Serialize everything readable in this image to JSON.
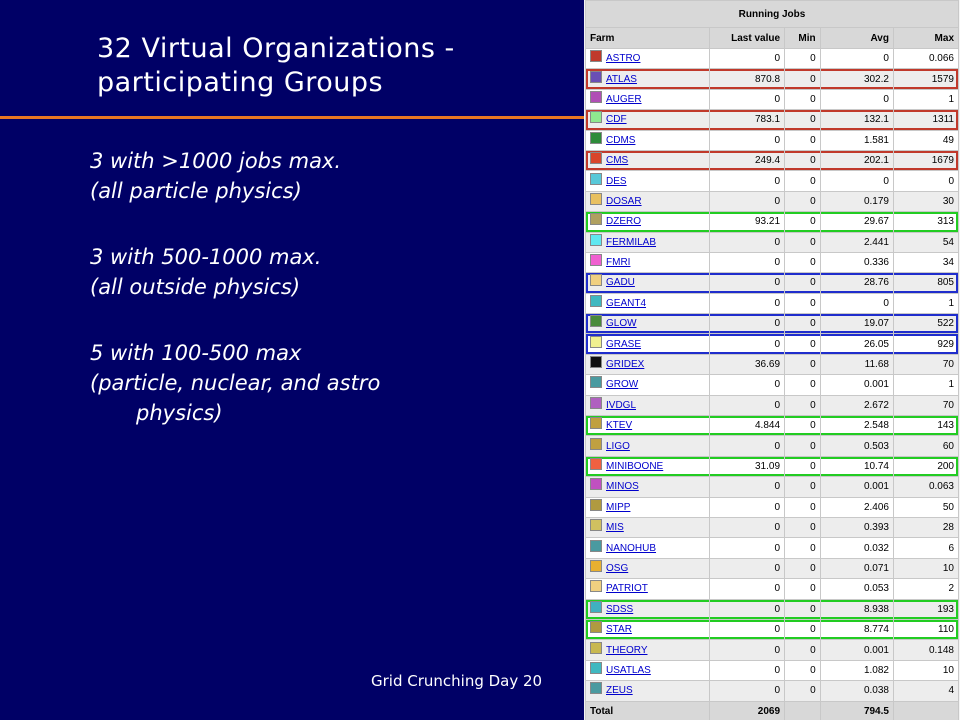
{
  "slide": {
    "title": "32 Virtual Organizations - participating Groups",
    "bullets": [
      "3 with >1000 jobs max.",
      "(all particle physics)",
      "3 with 500-1000 max.",
      "(all outside physics)",
      "5 with 100-500 max",
      "(particle, nuclear, and astro",
      "physics)"
    ],
    "footer": "Grid Crunching Day 20"
  },
  "table": {
    "caption": "Running Jobs",
    "columns": [
      "Farm",
      "Last value",
      "Min",
      "Avg",
      "Max"
    ],
    "rows": [
      {
        "name": "ASTRO",
        "color": "#c0392b",
        "last": "0",
        "min": "0",
        "avg": "0",
        "max": "0.066",
        "highlight": ""
      },
      {
        "name": "ATLAS",
        "color": "#6a4fb5",
        "last": "870.8",
        "min": "0",
        "avg": "302.2",
        "max": "1579",
        "highlight": "red"
      },
      {
        "name": "AUGER",
        "color": "#b04fb5",
        "last": "0",
        "min": "0",
        "avg": "0",
        "max": "1",
        "highlight": ""
      },
      {
        "name": "CDF",
        "color": "#8fe88f",
        "last": "783.1",
        "min": "0",
        "avg": "132.1",
        "max": "1311",
        "highlight": "red"
      },
      {
        "name": "CDMS",
        "color": "#2e8b3a",
        "last": "0",
        "min": "0",
        "avg": "1.581",
        "max": "49",
        "highlight": ""
      },
      {
        "name": "CMS",
        "color": "#d9452b",
        "last": "249.4",
        "min": "0",
        "avg": "202.1",
        "max": "1679",
        "highlight": "red"
      },
      {
        "name": "DES",
        "color": "#58c8d8",
        "last": "0",
        "min": "0",
        "avg": "0",
        "max": "0",
        "highlight": ""
      },
      {
        "name": "DOSAR",
        "color": "#e8c060",
        "last": "0",
        "min": "0",
        "avg": "0.179",
        "max": "30",
        "highlight": ""
      },
      {
        "name": "DZERO",
        "color": "#b0a060",
        "last": "93.21",
        "min": "0",
        "avg": "29.67",
        "max": "313",
        "highlight": "green"
      },
      {
        "name": "FERMILAB",
        "color": "#60e8f0",
        "last": "0",
        "min": "0",
        "avg": "2.441",
        "max": "54",
        "highlight": ""
      },
      {
        "name": "FMRI",
        "color": "#f060d0",
        "last": "0",
        "min": "0",
        "avg": "0.336",
        "max": "34",
        "highlight": ""
      },
      {
        "name": "GADU",
        "color": "#f0d080",
        "last": "0",
        "min": "0",
        "avg": "28.76",
        "max": "805",
        "highlight": "blue"
      },
      {
        "name": "GEANT4",
        "color": "#40b8c0",
        "last": "0",
        "min": "0",
        "avg": "0",
        "max": "1",
        "highlight": ""
      },
      {
        "name": "GLOW",
        "color": "#4a8a3a",
        "last": "0",
        "min": "0",
        "avg": "19.07",
        "max": "522",
        "highlight": "blue"
      },
      {
        "name": "GRASE",
        "color": "#f0f090",
        "last": "0",
        "min": "0",
        "avg": "26.05",
        "max": "929",
        "highlight": "blue"
      },
      {
        "name": "GRIDEX",
        "color": "#111111",
        "last": "36.69",
        "min": "0",
        "avg": "11.68",
        "max": "70",
        "highlight": ""
      },
      {
        "name": "GROW",
        "color": "#4a9aa0",
        "last": "0",
        "min": "0",
        "avg": "0.001",
        "max": "1",
        "highlight": ""
      },
      {
        "name": "IVDGL",
        "color": "#b060c0",
        "last": "0",
        "min": "0",
        "avg": "2.672",
        "max": "70",
        "highlight": ""
      },
      {
        "name": "KTEV",
        "color": "#c0a040",
        "last": "4.844",
        "min": "0",
        "avg": "2.548",
        "max": "143",
        "highlight": "green"
      },
      {
        "name": "LIGO",
        "color": "#c0a040",
        "last": "0",
        "min": "0",
        "avg": "0.503",
        "max": "60",
        "highlight": ""
      },
      {
        "name": "MINIBOONE",
        "color": "#f06040",
        "last": "31.09",
        "min": "0",
        "avg": "10.74",
        "max": "200",
        "highlight": "green"
      },
      {
        "name": "MINOS",
        "color": "#c050c0",
        "last": "0",
        "min": "0",
        "avg": "0.001",
        "max": "0.063",
        "highlight": ""
      },
      {
        "name": "MIPP",
        "color": "#b09a40",
        "last": "0",
        "min": "0",
        "avg": "2.406",
        "max": "50",
        "highlight": ""
      },
      {
        "name": "MIS",
        "color": "#d0c060",
        "last": "0",
        "min": "0",
        "avg": "0.393",
        "max": "28",
        "highlight": ""
      },
      {
        "name": "NANOHUB",
        "color": "#4a9aa0",
        "last": "0",
        "min": "0",
        "avg": "0.032",
        "max": "6",
        "highlight": ""
      },
      {
        "name": "OSG",
        "color": "#e8b030",
        "last": "0",
        "min": "0",
        "avg": "0.071",
        "max": "10",
        "highlight": ""
      },
      {
        "name": "PATRIOT",
        "color": "#f0d080",
        "last": "0",
        "min": "0",
        "avg": "0.053",
        "max": "2",
        "highlight": ""
      },
      {
        "name": "SDSS",
        "color": "#40b0c0",
        "last": "0",
        "min": "0",
        "avg": "8.938",
        "max": "193",
        "highlight": "green"
      },
      {
        "name": "STAR",
        "color": "#b09a40",
        "last": "0",
        "min": "0",
        "avg": "8.774",
        "max": "110",
        "highlight": "green"
      },
      {
        "name": "THEORY",
        "color": "#c8b850",
        "last": "0",
        "min": "0",
        "avg": "0.001",
        "max": "0.148",
        "highlight": ""
      },
      {
        "name": "USATLAS",
        "color": "#40b8c0",
        "last": "0",
        "min": "0",
        "avg": "1.082",
        "max": "10",
        "highlight": ""
      },
      {
        "name": "ZEUS",
        "color": "#4a9aa0",
        "last": "0",
        "min": "0",
        "avg": "0.038",
        "max": "4",
        "highlight": ""
      }
    ],
    "total": {
      "label": "Total",
      "last": "2069",
      "min": "",
      "avg": "794.5",
      "max": ""
    },
    "highlight_colors": {
      "red": "#c0392b",
      "green": "#22cc22",
      "blue": "#1f2dcc"
    }
  }
}
